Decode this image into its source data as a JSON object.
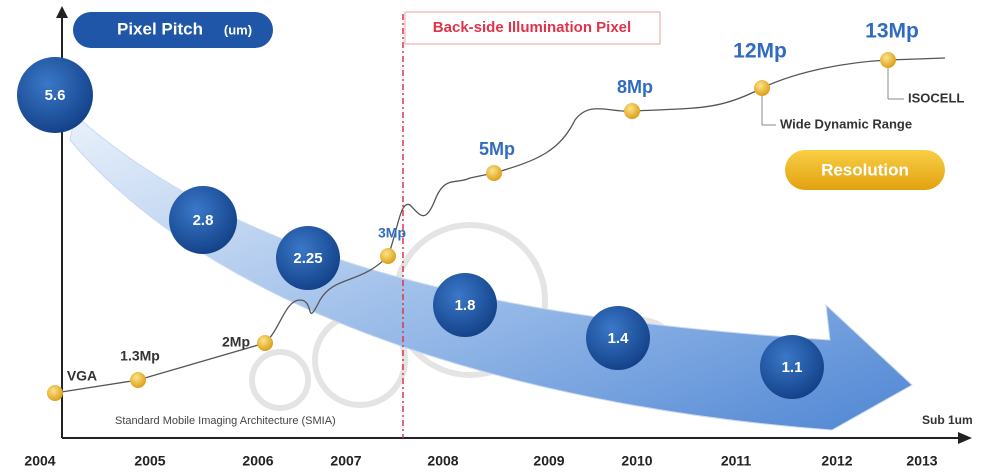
{
  "header": {
    "pitch_title": "Pixel Pitch",
    "pitch_unit": "(um)",
    "bsi": "Back-side Illumination Pixel",
    "resolution_title": "Resolution"
  },
  "years": [
    "2004",
    "2005",
    "2006",
    "2007",
    "2008",
    "2009",
    "2010",
    "2011",
    "2012",
    "2013"
  ],
  "pitch": [
    "5.6",
    "2.8",
    "2.25",
    "1.8",
    "1.4",
    "1.1"
  ],
  "resolution": [
    "VGA",
    "1.3Mp",
    "2Mp",
    "3Mp",
    "5Mp",
    "8Mp",
    "12Mp",
    "13Mp"
  ],
  "annotations": {
    "smia": "Standard Mobile Imaging Architecture (SMIA)",
    "wdr": "Wide Dynamic Range",
    "isocell": "ISOCELL",
    "sub": "Sub 1um"
  }
}
